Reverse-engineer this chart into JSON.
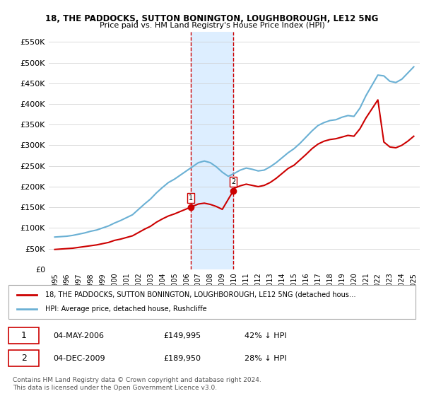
{
  "title1": "18, THE PADDOCKS, SUTTON BONINGTON, LOUGHBOROUGH, LE12 5NG",
  "title2": "Price paid vs. HM Land Registry's House Price Index (HPI)",
  "legend_line1": "18, THE PADDOCKS, SUTTON BONINGTON, LOUGHBOROUGH, LE12 5NG (detached hous…",
  "legend_line2": "HPI: Average price, detached house, Rushcliffe",
  "transaction1_date": "04-MAY-2006",
  "transaction1_price": "£149,995",
  "transaction1_hpi": "42% ↓ HPI",
  "transaction2_date": "04-DEC-2009",
  "transaction2_price": "£189,950",
  "transaction2_hpi": "28% ↓ HPI",
  "footer": "Contains HM Land Registry data © Crown copyright and database right 2024.\nThis data is licensed under the Open Government Licence v3.0.",
  "ylim": [
    0,
    575000
  ],
  "yticks": [
    0,
    50000,
    100000,
    150000,
    200000,
    250000,
    300000,
    350000,
    400000,
    450000,
    500000,
    550000
  ],
  "hpi_color": "#6ab0d4",
  "price_color": "#cc0000",
  "marker_color": "#cc0000",
  "vline_color": "#cc0000",
  "highlight_color": "#ddeeff",
  "transaction1_x": 2006.34,
  "transaction2_x": 2009.92,
  "hpi_years": [
    1995,
    1995.5,
    1996,
    1996.5,
    1997,
    1997.5,
    1998,
    1998.5,
    1999,
    1999.5,
    2000,
    2000.5,
    2001,
    2001.5,
    2002,
    2002.5,
    2003,
    2003.5,
    2004,
    2004.5,
    2005,
    2005.5,
    2006,
    2006.5,
    2007,
    2007.5,
    2008,
    2008.5,
    2009,
    2009.5,
    2010,
    2010.5,
    2011,
    2011.5,
    2012,
    2012.5,
    2013,
    2013.5,
    2014,
    2014.5,
    2015,
    2015.5,
    2016,
    2016.5,
    2017,
    2017.5,
    2018,
    2018.5,
    2019,
    2019.5,
    2020,
    2020.5,
    2021,
    2021.5,
    2022,
    2022.5,
    2023,
    2023.5,
    2024,
    2024.5,
    2025
  ],
  "hpi_values": [
    78000,
    79000,
    80000,
    82000,
    85000,
    88000,
    92000,
    95000,
    100000,
    105000,
    112000,
    118000,
    125000,
    132000,
    145000,
    158000,
    170000,
    185000,
    198000,
    210000,
    218000,
    228000,
    238000,
    248000,
    258000,
    262000,
    258000,
    248000,
    235000,
    225000,
    232000,
    240000,
    245000,
    242000,
    238000,
    240000,
    248000,
    258000,
    270000,
    282000,
    292000,
    305000,
    320000,
    335000,
    348000,
    355000,
    360000,
    362000,
    368000,
    372000,
    370000,
    390000,
    420000,
    445000,
    470000,
    468000,
    455000,
    452000,
    460000,
    475000,
    490000
  ],
  "price_years": [
    1995,
    1995.5,
    1996,
    1996.5,
    1997,
    1997.5,
    1998,
    1998.5,
    1999,
    1999.5,
    2000,
    2000.5,
    2001,
    2001.5,
    2002,
    2002.5,
    2003,
    2003.5,
    2004,
    2004.5,
    2005,
    2005.5,
    2006,
    2006.34,
    2006.5,
    2007,
    2007.5,
    2008,
    2008.5,
    2009,
    2009.92,
    2010,
    2010.5,
    2011,
    2011.5,
    2012,
    2012.5,
    2013,
    2013.5,
    2014,
    2014.5,
    2015,
    2015.5,
    2016,
    2016.5,
    2017,
    2017.5,
    2018,
    2018.5,
    2019,
    2019.5,
    2020,
    2020.5,
    2021,
    2021.5,
    2022,
    2022.5,
    2023,
    2023.5,
    2024,
    2024.5,
    2025
  ],
  "price_values": [
    48000,
    49000,
    50000,
    51000,
    53000,
    55000,
    57000,
    59000,
    62000,
    65000,
    70000,
    73000,
    77000,
    81000,
    89000,
    97000,
    104000,
    114000,
    122000,
    129000,
    134000,
    140000,
    146000,
    149995,
    152000,
    158000,
    160000,
    157000,
    152000,
    145000,
    189950,
    196000,
    202000,
    206000,
    203000,
    200000,
    203000,
    210000,
    220000,
    232000,
    244000,
    252000,
    265000,
    278000,
    292000,
    303000,
    310000,
    314000,
    316000,
    320000,
    324000,
    322000,
    340000,
    366000,
    388000,
    410000,
    308000,
    296000,
    294000,
    300000,
    310000,
    322000
  ]
}
